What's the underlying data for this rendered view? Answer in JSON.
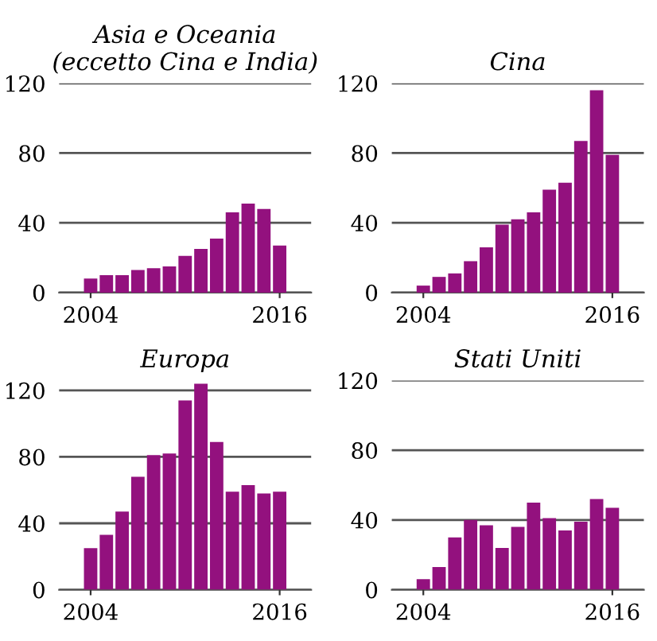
{
  "chart_data": [
    {
      "type": "bar",
      "title": "Asia e Oceania\n(eccetto Cina e India)",
      "x": [
        2004,
        2005,
        2006,
        2007,
        2008,
        2009,
        2010,
        2011,
        2012,
        2013,
        2014,
        2015,
        2016
      ],
      "values": [
        8,
        10,
        10,
        13,
        14,
        15,
        21,
        25,
        31,
        46,
        51,
        48,
        27
      ],
      "color": "#93117e",
      "xlim": [
        2002,
        2018
      ],
      "xticks": [
        2004,
        2016
      ],
      "ylim": [
        0,
        120
      ],
      "yticks": [
        0,
        40,
        80,
        120
      ],
      "grid": "y"
    },
    {
      "type": "bar",
      "title": "Cina",
      "x": [
        2004,
        2005,
        2006,
        2007,
        2008,
        2009,
        2010,
        2011,
        2012,
        2013,
        2014,
        2015,
        2016
      ],
      "values": [
        4,
        9,
        11,
        18,
        26,
        39,
        42,
        46,
        59,
        63,
        87,
        116,
        79
      ],
      "color": "#93117e",
      "xlim": [
        2002,
        2018
      ],
      "xticks": [
        2004,
        2016
      ],
      "ylim": [
        0,
        120
      ],
      "yticks": [
        0,
        40,
        80,
        120
      ],
      "grid": "y"
    },
    {
      "type": "bar",
      "title": "Europa",
      "x": [
        2004,
        2005,
        2006,
        2007,
        2008,
        2009,
        2010,
        2011,
        2012,
        2013,
        2014,
        2015,
        2016
      ],
      "values": [
        25,
        33,
        47,
        68,
        81,
        82,
        114,
        124,
        89,
        59,
        63,
        58,
        59
      ],
      "color": "#93117e",
      "xlim": [
        2002,
        2018
      ],
      "xticks": [
        2004,
        2016
      ],
      "ylim": [
        0,
        126
      ],
      "yticks": [
        0,
        40,
        80,
        120
      ],
      "grid": "y"
    },
    {
      "type": "bar",
      "title": "Stati Uniti",
      "x": [
        2004,
        2005,
        2006,
        2007,
        2008,
        2009,
        2010,
        2011,
        2012,
        2013,
        2014,
        2015,
        2016
      ],
      "values": [
        6,
        13,
        30,
        40,
        37,
        24,
        36,
        50,
        41,
        34,
        39,
        52,
        47
      ],
      "color": "#93117e",
      "xlim": [
        2002,
        2018
      ],
      "xticks": [
        2004,
        2016
      ],
      "ylim": [
        0,
        120
      ],
      "yticks": [
        0,
        40,
        80,
        120
      ],
      "grid": "y"
    }
  ]
}
